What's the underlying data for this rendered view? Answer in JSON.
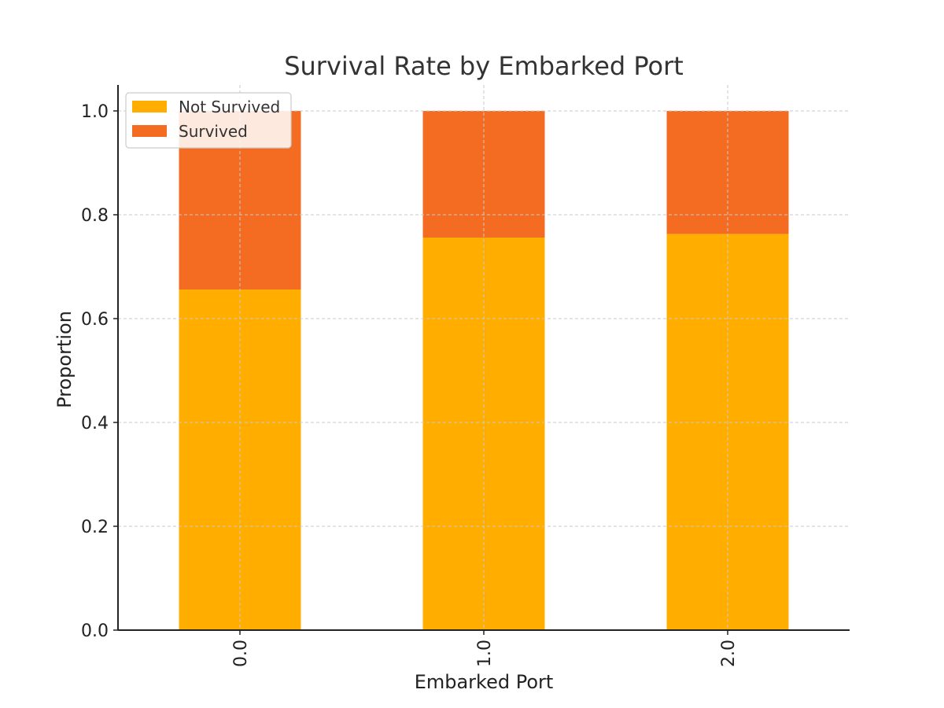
{
  "chart_data": {
    "type": "bar",
    "stacked": true,
    "title": "Survival Rate by Embarked Port",
    "xlabel": "Embarked Port",
    "ylabel": "Proportion",
    "categories": [
      "0.0",
      "1.0",
      "2.0"
    ],
    "ylim": [
      0,
      1.05
    ],
    "yticks": [
      0.0,
      0.2,
      0.4,
      0.6,
      0.8,
      1.0
    ],
    "ytick_labels": [
      "0.0",
      "0.2",
      "0.4",
      "0.6",
      "0.8",
      "1.0"
    ],
    "grid": true,
    "legend_position": "top-left",
    "series": [
      {
        "name": "Not Survived",
        "color": "#FFAE00",
        "values": [
          0.656,
          0.756,
          0.763
        ]
      },
      {
        "name": "Survived",
        "color": "#F46B22",
        "values": [
          0.344,
          0.244,
          0.237
        ]
      }
    ]
  }
}
